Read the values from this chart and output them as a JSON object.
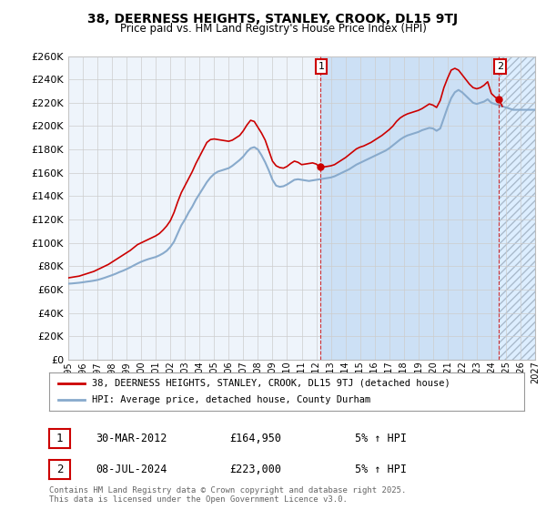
{
  "title": "38, DEERNESS HEIGHTS, STANLEY, CROOK, DL15 9TJ",
  "subtitle": "Price paid vs. HM Land Registry's House Price Index (HPI)",
  "legend_line1": "38, DEERNESS HEIGHTS, STANLEY, CROOK, DL15 9TJ (detached house)",
  "legend_line2": "HPI: Average price, detached house, County Durham",
  "annotation1_date": "30-MAR-2012",
  "annotation1_price": "£164,950",
  "annotation1_hpi": "5% ↑ HPI",
  "annotation2_date": "08-JUL-2024",
  "annotation2_price": "£223,000",
  "annotation2_hpi": "5% ↑ HPI",
  "footer": "Contains HM Land Registry data © Crown copyright and database right 2025.\nThis data is licensed under the Open Government Licence v3.0.",
  "red_color": "#cc0000",
  "blue_color": "#88aacc",
  "fill_color": "#ddeeff",
  "hatch_color": "#ccddee",
  "grid_color": "#cccccc",
  "background_color": "#ffffff",
  "ylim": [
    0,
    260000
  ],
  "ytick_vals": [
    0,
    20000,
    40000,
    60000,
    80000,
    100000,
    120000,
    140000,
    160000,
    180000,
    200000,
    220000,
    240000,
    260000
  ],
  "ytick_labels": [
    "£0",
    "£20K",
    "£40K",
    "£60K",
    "£80K",
    "£100K",
    "£120K",
    "£140K",
    "£160K",
    "£180K",
    "£200K",
    "£220K",
    "£240K",
    "£260K"
  ],
  "xlim_start": 1995,
  "xlim_end": 2027,
  "point1_x": 2012.25,
  "point1_y": 164950,
  "point2_x": 2024.5,
  "point2_y": 223000,
  "hpi_years": [
    1995,
    1995.25,
    1995.5,
    1995.75,
    1996,
    1996.25,
    1996.5,
    1996.75,
    1997,
    1997.25,
    1997.5,
    1997.75,
    1998,
    1998.25,
    1998.5,
    1998.75,
    1999,
    1999.25,
    1999.5,
    1999.75,
    2000,
    2000.25,
    2000.5,
    2000.75,
    2001,
    2001.25,
    2001.5,
    2001.75,
    2002,
    2002.25,
    2002.5,
    2002.75,
    2003,
    2003.25,
    2003.5,
    2003.75,
    2004,
    2004.25,
    2004.5,
    2004.75,
    2005,
    2005.25,
    2005.5,
    2005.75,
    2006,
    2006.25,
    2006.5,
    2006.75,
    2007,
    2007.25,
    2007.5,
    2007.75,
    2008,
    2008.25,
    2008.5,
    2008.75,
    2009,
    2009.25,
    2009.5,
    2009.75,
    2010,
    2010.25,
    2010.5,
    2010.75,
    2011,
    2011.25,
    2011.5,
    2011.75,
    2012,
    2012.25,
    2012.5,
    2012.75,
    2013,
    2013.25,
    2013.5,
    2013.75,
    2014,
    2014.25,
    2014.5,
    2014.75,
    2015,
    2015.25,
    2015.5,
    2015.75,
    2016,
    2016.25,
    2016.5,
    2016.75,
    2017,
    2017.25,
    2017.5,
    2017.75,
    2018,
    2018.25,
    2018.5,
    2018.75,
    2019,
    2019.25,
    2019.5,
    2019.75,
    2020,
    2020.25,
    2020.5,
    2020.75,
    2021,
    2021.25,
    2021.5,
    2021.75,
    2022,
    2022.25,
    2022.5,
    2022.75,
    2023,
    2023.25,
    2023.5,
    2023.75,
    2024,
    2024.25,
    2024.5,
    2024.75,
    2025,
    2025.25,
    2025.5,
    2025.75,
    2026,
    2026.25,
    2026.5,
    2026.75,
    2027
  ],
  "hpi_vals": [
    65000,
    65200,
    65500,
    65800,
    66200,
    66700,
    67100,
    67600,
    68200,
    69100,
    70100,
    71200,
    72300,
    73500,
    74900,
    76100,
    77500,
    79000,
    80700,
    82300,
    83800,
    85000,
    86100,
    87000,
    87900,
    89300,
    91000,
    93200,
    96500,
    101000,
    108000,
    115000,
    120000,
    126000,
    131000,
    137000,
    142000,
    147000,
    152000,
    156000,
    159000,
    161000,
    162000,
    163000,
    164000,
    166000,
    168500,
    171000,
    174000,
    178000,
    181000,
    182000,
    180000,
    175000,
    169000,
    162000,
    154000,
    149000,
    148000,
    148500,
    150000,
    152000,
    154000,
    154500,
    154000,
    153500,
    153000,
    153500,
    154000,
    154500,
    155000,
    155500,
    156000,
    157000,
    158500,
    160000,
    161500,
    163000,
    165000,
    167000,
    168500,
    170000,
    171500,
    173000,
    174500,
    176000,
    177500,
    179000,
    181000,
    183500,
    186000,
    188500,
    190500,
    192000,
    193000,
    194000,
    195000,
    196500,
    197500,
    198500,
    198000,
    196000,
    198000,
    207000,
    216000,
    224000,
    229000,
    231000,
    229000,
    226000,
    223000,
    220000,
    219000,
    220000,
    221000,
    223000,
    220000,
    219000,
    218000,
    217000,
    216000,
    215000,
    214000,
    214000,
    214000,
    214000,
    214000,
    214000,
    214000
  ],
  "red_years": [
    1995,
    1995.25,
    1995.5,
    1995.75,
    1996,
    1996.25,
    1996.5,
    1996.75,
    1997,
    1997.25,
    1997.5,
    1997.75,
    1998,
    1998.25,
    1998.5,
    1998.75,
    1999,
    1999.25,
    1999.5,
    1999.75,
    2000,
    2000.25,
    2000.5,
    2000.75,
    2001,
    2001.25,
    2001.5,
    2001.75,
    2002,
    2002.25,
    2002.5,
    2002.75,
    2003,
    2003.25,
    2003.5,
    2003.75,
    2004,
    2004.25,
    2004.5,
    2004.75,
    2005,
    2005.25,
    2005.5,
    2005.75,
    2006,
    2006.25,
    2006.5,
    2006.75,
    2007,
    2007.25,
    2007.5,
    2007.75,
    2008,
    2008.25,
    2008.5,
    2008.75,
    2009,
    2009.25,
    2009.5,
    2009.75,
    2010,
    2010.25,
    2010.5,
    2010.75,
    2011,
    2011.25,
    2011.5,
    2011.75,
    2012,
    2012.25,
    2012.5,
    2012.75,
    2013,
    2013.25,
    2013.5,
    2013.75,
    2014,
    2014.25,
    2014.5,
    2014.75,
    2015,
    2015.25,
    2015.5,
    2015.75,
    2016,
    2016.25,
    2016.5,
    2016.75,
    2017,
    2017.25,
    2017.5,
    2017.75,
    2018,
    2018.25,
    2018.5,
    2018.75,
    2019,
    2019.25,
    2019.5,
    2019.75,
    2020,
    2020.25,
    2020.5,
    2020.75,
    2021,
    2021.25,
    2021.5,
    2021.75,
    2022,
    2022.25,
    2022.5,
    2022.75,
    2023,
    2023.25,
    2023.5,
    2023.75,
    2024,
    2024.25,
    2024.5,
    2024.75
  ],
  "red_vals": [
    70000,
    70500,
    71000,
    71500,
    72500,
    73500,
    74500,
    75500,
    77000,
    78500,
    80000,
    81500,
    83500,
    85500,
    87500,
    89500,
    91500,
    93500,
    96000,
    98500,
    100000,
    101500,
    103000,
    104500,
    106000,
    108000,
    111000,
    114500,
    119000,
    126000,
    135000,
    143000,
    149000,
    155000,
    161000,
    168000,
    174000,
    180000,
    186000,
    188500,
    189000,
    188500,
    188000,
    187500,
    187000,
    188000,
    190000,
    192000,
    196000,
    201000,
    205000,
    204000,
    199000,
    194000,
    188000,
    179000,
    170000,
    166000,
    164500,
    164000,
    165500,
    168000,
    170000,
    169000,
    167000,
    167500,
    168000,
    168500,
    167500,
    164950,
    165000,
    165500,
    166000,
    167000,
    169000,
    171000,
    173000,
    175500,
    178000,
    180500,
    182000,
    183000,
    184500,
    186000,
    188000,
    190000,
    192000,
    194500,
    197000,
    200000,
    204000,
    207000,
    209000,
    210500,
    211500,
    212500,
    213500,
    215000,
    217000,
    219000,
    218000,
    216000,
    222000,
    233000,
    241000,
    248000,
    249500,
    248000,
    244000,
    240000,
    236000,
    233000,
    232000,
    233000,
    235000,
    238000,
    228000,
    225000,
    223000,
    217000
  ]
}
